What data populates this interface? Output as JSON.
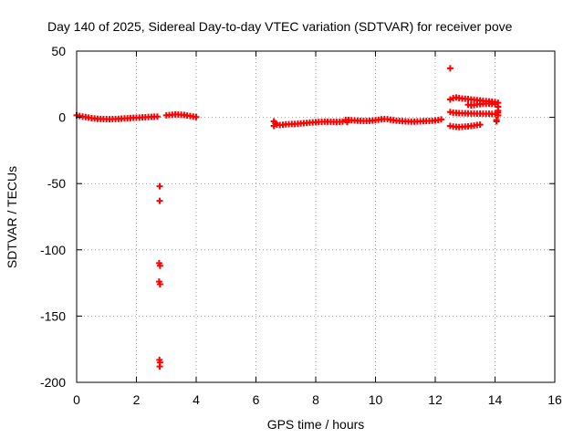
{
  "chart_data": {
    "type": "scatter",
    "title": "Day 140 of 2025, Sidereal Day-to-day VTEC variation (SDTVAR) for receiver pove",
    "xlabel": "GPS time / hours",
    "ylabel": "SDTVAR / TECUs",
    "xlim": [
      0,
      16
    ],
    "ylim": [
      -200,
      50
    ],
    "xticks": [
      0,
      2,
      4,
      6,
      8,
      10,
      12,
      14,
      16
    ],
    "yticks": [
      -200,
      -150,
      -100,
      -50,
      0,
      50
    ],
    "grid": true,
    "marker": "plus",
    "color": "#ff0000",
    "segments": [
      {
        "name": "seg-a",
        "points": [
          [
            0.0,
            1.5
          ],
          [
            0.1,
            1.0
          ],
          [
            0.2,
            0.6
          ],
          [
            0.3,
            0.2
          ],
          [
            0.4,
            -0.2
          ],
          [
            0.5,
            -0.6
          ],
          [
            0.6,
            -0.9
          ],
          [
            0.7,
            -1.1
          ],
          [
            0.8,
            -1.2
          ],
          [
            0.9,
            -1.3
          ],
          [
            1.0,
            -1.3
          ],
          [
            1.1,
            -1.4
          ],
          [
            1.2,
            -1.3
          ],
          [
            1.3,
            -1.2
          ],
          [
            1.4,
            -1.1
          ],
          [
            1.5,
            -1.0
          ],
          [
            1.6,
            -0.8
          ],
          [
            1.7,
            -0.7
          ],
          [
            1.8,
            -0.5
          ],
          [
            1.9,
            -0.4
          ],
          [
            2.0,
            -0.3
          ],
          [
            2.1,
            -0.2
          ],
          [
            2.2,
            0.0
          ],
          [
            2.3,
            0.1
          ],
          [
            2.4,
            0.2
          ],
          [
            2.5,
            0.3
          ],
          [
            2.6,
            0.5
          ],
          [
            2.7,
            0.6
          ]
        ]
      },
      {
        "name": "outliers",
        "points": [
          [
            2.78,
            -52
          ],
          [
            2.78,
            -63
          ],
          [
            2.76,
            -110
          ],
          [
            2.79,
            -112
          ],
          [
            2.76,
            -124
          ],
          [
            2.79,
            -126
          ],
          [
            2.77,
            -183
          ],
          [
            2.79,
            -185
          ],
          [
            2.78,
            -188
          ]
        ]
      },
      {
        "name": "seg-b",
        "points": [
          [
            3.0,
            1.5
          ],
          [
            3.1,
            1.8
          ],
          [
            3.2,
            2.0
          ],
          [
            3.3,
            2.2
          ],
          [
            3.4,
            2.1
          ],
          [
            3.5,
            2.0
          ],
          [
            3.6,
            1.8
          ],
          [
            3.7,
            1.4
          ],
          [
            3.8,
            1.0
          ],
          [
            3.9,
            0.6
          ],
          [
            4.0,
            0.2
          ]
        ]
      },
      {
        "name": "seg-c",
        "points": [
          [
            6.6,
            -6.5
          ],
          [
            6.6,
            -3.0
          ],
          [
            6.65,
            -4.5
          ],
          [
            6.7,
            -5.5
          ],
          [
            6.8,
            -5.8
          ],
          [
            6.9,
            -5.6
          ],
          [
            7.0,
            -5.3
          ],
          [
            7.1,
            -5.2
          ],
          [
            7.2,
            -5.0
          ],
          [
            7.3,
            -5.0
          ],
          [
            7.4,
            -4.8
          ],
          [
            7.5,
            -4.6
          ],
          [
            7.6,
            -4.4
          ],
          [
            7.7,
            -4.2
          ],
          [
            7.8,
            -4.0
          ],
          [
            7.9,
            -3.8
          ],
          [
            8.0,
            -3.6
          ],
          [
            8.1,
            -3.5
          ],
          [
            8.2,
            -3.4
          ],
          [
            8.3,
            -3.3
          ],
          [
            8.4,
            -3.3
          ],
          [
            8.5,
            -3.3
          ],
          [
            8.6,
            -3.4
          ],
          [
            8.7,
            -3.5
          ],
          [
            8.8,
            -3.4
          ],
          [
            8.9,
            -3.2
          ],
          [
            9.0,
            -2.0
          ],
          [
            9.05,
            -3.5
          ],
          [
            9.1,
            -2.0
          ],
          [
            9.2,
            -2.2
          ],
          [
            9.3,
            -2.3
          ],
          [
            9.4,
            -2.5
          ],
          [
            9.5,
            -2.6
          ],
          [
            9.6,
            -2.7
          ],
          [
            9.7,
            -2.7
          ],
          [
            9.8,
            -2.6
          ],
          [
            9.9,
            -2.4
          ],
          [
            10.0,
            -2.2
          ],
          [
            10.1,
            -1.8
          ],
          [
            10.2,
            -1.5
          ],
          [
            10.3,
            -1.3
          ],
          [
            10.4,
            -1.4
          ],
          [
            10.5,
            -1.8
          ],
          [
            10.6,
            -2.2
          ],
          [
            10.7,
            -2.5
          ],
          [
            10.8,
            -2.7
          ],
          [
            10.9,
            -2.9
          ],
          [
            11.0,
            -3.0
          ],
          [
            11.1,
            -3.1
          ],
          [
            11.2,
            -3.2
          ],
          [
            11.3,
            -3.2
          ],
          [
            11.4,
            -3.1
          ],
          [
            11.5,
            -3.0
          ],
          [
            11.6,
            -2.9
          ],
          [
            11.7,
            -2.8
          ],
          [
            11.8,
            -2.7
          ],
          [
            11.9,
            -2.6
          ],
          [
            12.0,
            -2.3
          ],
          [
            12.1,
            -2.0
          ],
          [
            12.2,
            -1.6
          ]
        ]
      },
      {
        "name": "seg-d",
        "points": [
          [
            12.5,
            37
          ],
          [
            12.5,
            13.5
          ],
          [
            12.6,
            14.5
          ],
          [
            12.7,
            15.0
          ],
          [
            12.8,
            14.5
          ],
          [
            12.9,
            14.2
          ],
          [
            13.0,
            14.0
          ],
          [
            13.1,
            13.8
          ],
          [
            13.2,
            13.5
          ],
          [
            13.3,
            13.3
          ],
          [
            13.4,
            13.0
          ],
          [
            13.5,
            12.8
          ],
          [
            13.6,
            12.5
          ],
          [
            13.7,
            12.3
          ],
          [
            13.8,
            12.0
          ],
          [
            13.9,
            11.8
          ],
          [
            14.0,
            11.5
          ],
          [
            14.1,
            11.0
          ],
          [
            14.1,
            8.0
          ],
          [
            14.1,
            5.0
          ],
          [
            14.1,
            3.5
          ],
          [
            14.1,
            1.5
          ],
          [
            14.05,
            -2.0
          ],
          [
            14.05,
            -3.0
          ],
          [
            13.1,
            9.5
          ],
          [
            13.2,
            9.0
          ],
          [
            13.3,
            9.3
          ],
          [
            13.4,
            9.8
          ],
          [
            13.5,
            10.0
          ],
          [
            13.6,
            10.2
          ],
          [
            13.7,
            10.3
          ],
          [
            13.8,
            10.3
          ],
          [
            13.9,
            10.2
          ],
          [
            14.0,
            10.0
          ],
          [
            12.5,
            4.0
          ],
          [
            12.6,
            3.5
          ],
          [
            12.7,
            3.3
          ],
          [
            12.8,
            3.2
          ],
          [
            12.9,
            3.2
          ],
          [
            13.0,
            3.1
          ],
          [
            13.1,
            3.0
          ],
          [
            13.2,
            2.9
          ],
          [
            13.3,
            2.9
          ],
          [
            13.4,
            2.8
          ],
          [
            13.5,
            2.8
          ],
          [
            13.6,
            2.7
          ],
          [
            13.7,
            2.7
          ],
          [
            13.8,
            2.7
          ],
          [
            13.9,
            2.6
          ],
          [
            14.0,
            2.6
          ],
          [
            12.5,
            -6.5
          ],
          [
            12.6,
            -7.0
          ],
          [
            12.7,
            -7.2
          ],
          [
            12.8,
            -7.3
          ],
          [
            12.9,
            -7.2
          ],
          [
            13.0,
            -7.0
          ],
          [
            13.1,
            -6.8
          ],
          [
            13.2,
            -6.5
          ],
          [
            13.3,
            -6.2
          ],
          [
            13.4,
            -5.8
          ],
          [
            13.5,
            -5.5
          ]
        ]
      }
    ]
  }
}
